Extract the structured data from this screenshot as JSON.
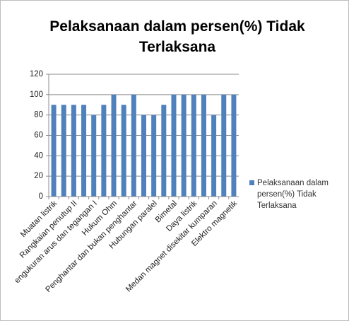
{
  "chart_data": {
    "type": "bar",
    "title": "Pelaksanaan dalam persen(%) Tidak Terlaksana",
    "categories": [
      "Muatan listrik",
      null,
      "Rangkaian penutup II",
      null,
      "engukuran arus dan tegangan I",
      null,
      "Hukum Ohm",
      null,
      "Penghantar dan bukan penghantar",
      null,
      "Hubungan paralel",
      null,
      "Bimetal",
      null,
      "Daya listrik",
      null,
      "Medan magnet disekitar kumparan",
      null,
      "Elektro magnetik"
    ],
    "series": [
      {
        "name": "Pelaksanaan dalam persen(%) Tidak Terlaksana",
        "color": "#4f81bd",
        "values": [
          90,
          90,
          90,
          90,
          80,
          90,
          100,
          90,
          100,
          80,
          80,
          90,
          100,
          100,
          100,
          100,
          80,
          100,
          100
        ]
      }
    ],
    "ylim": [
      0,
      120
    ],
    "yticks": [
      0,
      20,
      40,
      60,
      80,
      100,
      120
    ],
    "grid": true,
    "legend": "right"
  }
}
